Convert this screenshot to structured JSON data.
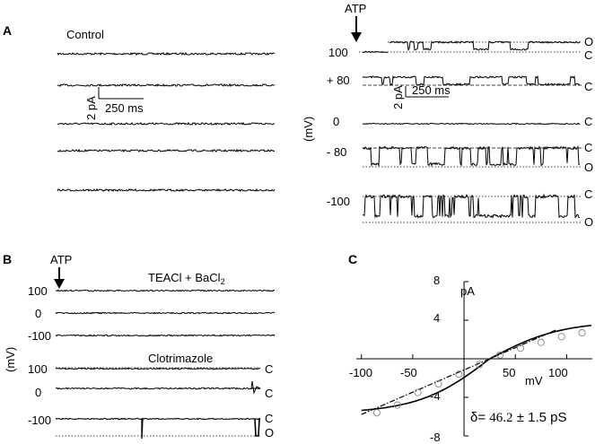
{
  "panel_labels": {
    "a": "A",
    "b": "B",
    "c": "C"
  },
  "panel_a": {
    "control_label": "Control",
    "atp_label": "ATP",
    "voltages": [
      "100",
      "+ 80",
      "0",
      "- 80",
      "-100"
    ],
    "axis_unit": "(mV)",
    "scale_y": "2 pA",
    "scale_x": "250 ms",
    "state_open": "O",
    "state_closed": "C"
  },
  "panel_b": {
    "atp_label": "ATP",
    "teacl_label": "TEACl + BaCl",
    "teacl_sub": "2",
    "clotrimazole_label": "Clotrimazole",
    "voltages_top": [
      "100",
      "0",
      "-100"
    ],
    "voltages_bottom": [
      "100",
      "0",
      "-100"
    ],
    "axis_unit": "(mV)",
    "state_open": "O",
    "state_closed": "C"
  },
  "panel_c": {
    "y_unit": "pA",
    "x_unit": "mV",
    "y_ticks": [
      "8",
      "4",
      "-4",
      "-8"
    ],
    "x_ticks": [
      "-100",
      "-50",
      "50",
      "100"
    ],
    "conductance_symbol": "δ=",
    "conductance_value": "46.2",
    "conductance_pm": "± 1.5 pS"
  },
  "chart_data": {
    "type": "scatter",
    "title": "",
    "xlabel": "mV",
    "ylabel": "pA",
    "xlim": [
      -105,
      125
    ],
    "ylim": [
      -8,
      8
    ],
    "x": [
      -85,
      -65,
      -45,
      -25,
      -5,
      15,
      35,
      55,
      75,
      95,
      115
    ],
    "y": [
      -5.6,
      -4.8,
      -3.5,
      -2.6,
      -1.6,
      -0.6,
      0.4,
      1.1,
      1.7,
      2.3,
      2.7
    ],
    "fit_line": {
      "slope_pA_per_mV": 0.0462,
      "reversal_mV": 25
    },
    "ghk_curve": true
  },
  "colors": {
    "trace": "#000000",
    "symbol": "#888888"
  }
}
